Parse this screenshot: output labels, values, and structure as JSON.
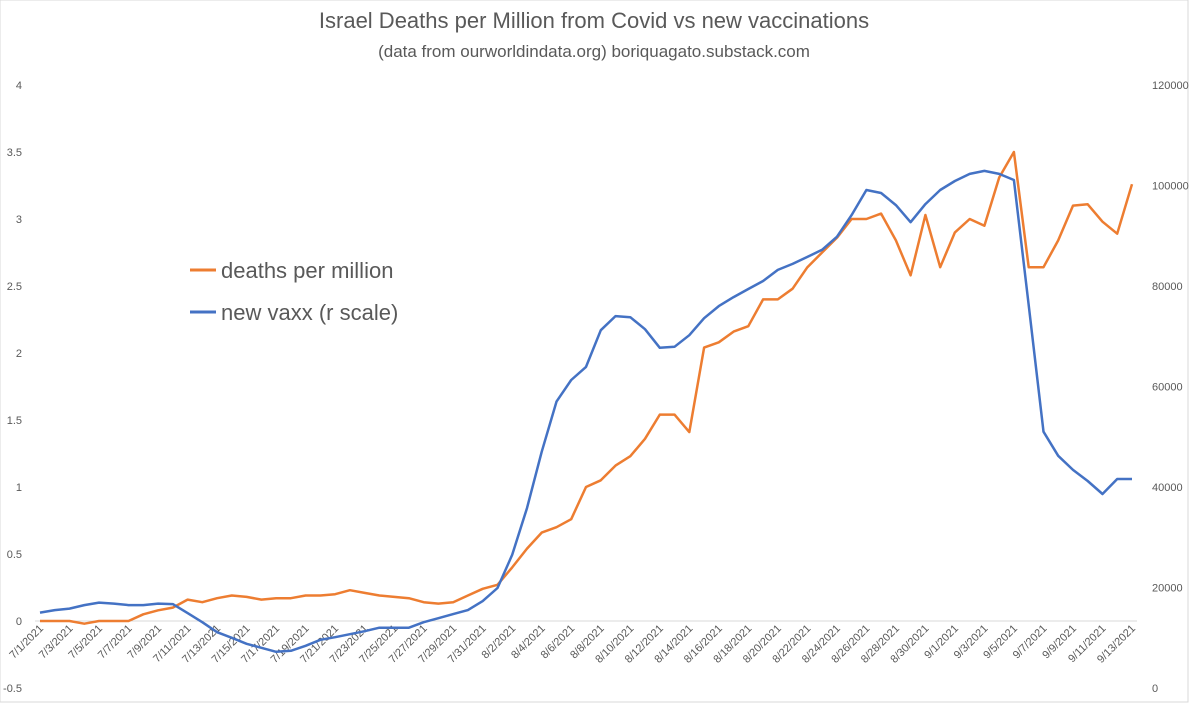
{
  "chart_data": {
    "type": "line",
    "title": "Israel Deaths per Million from Covid vs new vaccinations",
    "subtitle": "(data from ourworldindata.org)  boriquagato.substack.com",
    "categories": [
      "7/1/2021",
      null,
      "7/3/2021",
      null,
      "7/5/2021",
      null,
      "7/7/2021",
      null,
      "7/9/2021",
      null,
      "7/11/2021",
      null,
      "7/13/2021",
      null,
      "7/15/2021",
      null,
      "7/17/2021",
      null,
      "7/19/2021",
      null,
      "7/21/2021",
      null,
      "7/23/2021",
      null,
      "7/25/2021",
      null,
      "7/27/2021",
      null,
      "7/29/2021",
      null,
      "7/31/2021",
      null,
      "8/2/2021",
      null,
      "8/4/2021",
      null,
      "8/6/2021",
      null,
      "8/8/2021",
      null,
      "8/10/2021",
      null,
      "8/12/2021",
      null,
      "8/14/2021",
      null,
      "8/16/2021",
      null,
      "8/18/2021",
      null,
      "8/20/2021",
      null,
      "8/22/2021",
      null,
      "8/24/2021",
      null,
      "8/26/2021",
      null,
      "8/28/2021",
      null,
      "8/30/2021",
      null,
      "9/1/2021",
      null,
      "9/3/2021",
      null,
      "9/5/2021",
      null,
      "9/7/2021",
      null,
      "9/9/2021",
      null,
      "9/11/2021",
      null,
      "9/13/2021"
    ],
    "series": [
      {
        "name": "deaths per million",
        "color": "#ed7d31",
        "values": [
          0,
          0,
          0,
          -0.02,
          0,
          0,
          0,
          0.05,
          0.08,
          0.1,
          0.16,
          0.14,
          0.17,
          0.19,
          0.18,
          0.16,
          0.17,
          0.17,
          0.19,
          0.19,
          0.2,
          0.23,
          0.21,
          0.19,
          0.18,
          0.17,
          0.14,
          0.13,
          0.14,
          0.19,
          0.24,
          0.27,
          0.4,
          0.54,
          0.66,
          0.7,
          0.76,
          1.0,
          1.05,
          1.16,
          1.23,
          1.36,
          1.54,
          1.54,
          1.41,
          2.04,
          2.08,
          2.16,
          2.2,
          2.4,
          2.4,
          2.48,
          2.64,
          2.75,
          2.86,
          3.0,
          3.0,
          3.04,
          2.84,
          2.58,
          3.03,
          2.64,
          2.9,
          3.0,
          2.95,
          3.31,
          3.5,
          2.64,
          2.64,
          2.84,
          3.1,
          3.11,
          2.98,
          2.89,
          3.26
        ]
      },
      {
        "name": "new vaxx (r scale)",
        "color": "#4472c4",
        "axis": "y2",
        "values": [
          15000,
          15500,
          15800,
          16500,
          17000,
          16800,
          16500,
          16500,
          16800,
          16700,
          14900,
          13100,
          11100,
          10000,
          8800,
          8000,
          7200,
          7400,
          8400,
          9600,
          10100,
          10700,
          11300,
          12000,
          12000,
          12000,
          13100,
          13900,
          14700,
          15500,
          17300,
          19900,
          26500,
          35800,
          47000,
          57000,
          61300,
          63900,
          71200,
          74000,
          73800,
          71400,
          67700,
          67900,
          70200,
          73600,
          76000,
          77800,
          79400,
          81000,
          83200,
          84400,
          85800,
          87200,
          89800,
          94100,
          99100,
          98500,
          96100,
          92700,
          96300,
          99100,
          100900,
          102300,
          102900,
          102300,
          101100,
          76200,
          51000,
          46200,
          43400,
          41200,
          38600,
          41600,
          41600
        ]
      }
    ],
    "ylim": [
      -0.5,
      4
    ],
    "yticks": [
      -0.5,
      0,
      0.5,
      1,
      1.5,
      2,
      2.5,
      3,
      3.5,
      4
    ],
    "y2lim": [
      0,
      120000
    ],
    "y2ticks": [
      0,
      20000,
      40000,
      60000,
      80000,
      100000,
      120000
    ],
    "grid": false,
    "legend": "left"
  }
}
